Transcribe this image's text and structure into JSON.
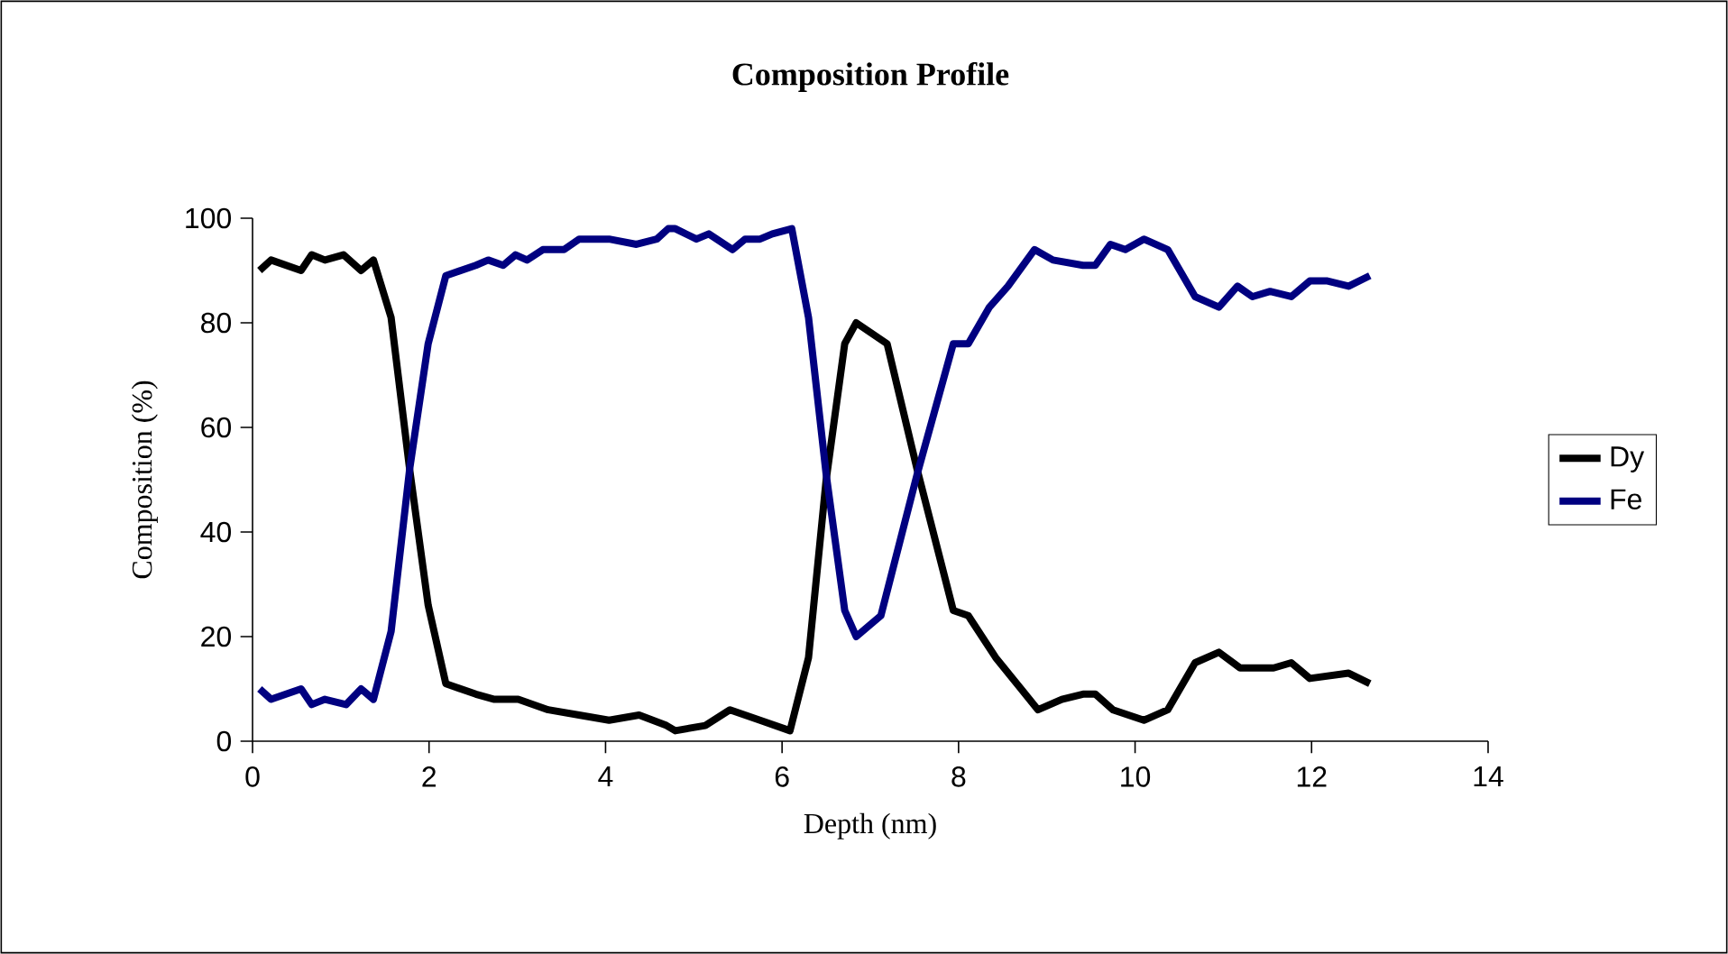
{
  "chart_data": {
    "type": "line",
    "title": "Composition Profile",
    "xlabel": "Depth (nm)",
    "ylabel": "Composition (%)",
    "xlim": [
      0,
      14
    ],
    "xticks": [
      0,
      2,
      4,
      6,
      8,
      10,
      12,
      14
    ],
    "ylim": [
      0,
      100
    ],
    "yticks": [
      0,
      20,
      40,
      60,
      80,
      100
    ],
    "grid": false,
    "legend": "right",
    "marker": "none",
    "line_style": "solid",
    "series": [
      {
        "name": "Dy",
        "color": "#000000",
        "x": [
          0.08,
          0.21,
          0.55,
          0.67,
          0.82,
          1.03,
          1.23,
          1.37,
          1.57,
          1.78,
          1.99,
          2.19,
          2.53,
          2.74,
          3.01,
          3.35,
          3.7,
          4.04,
          4.38,
          4.69,
          4.79,
          5.13,
          5.41,
          5.75,
          6.09,
          6.3,
          6.5,
          6.71,
          6.84,
          7.19,
          7.53,
          7.94,
          8.11,
          8.42,
          8.9,
          9.17,
          9.41,
          9.55,
          9.75,
          10.1,
          10.37,
          10.68,
          10.95,
          11.19,
          11.57,
          11.77,
          11.98,
          12.42,
          12.66
        ],
        "values": [
          90,
          92,
          90,
          93,
          92,
          93,
          90,
          92,
          81,
          52,
          26,
          11,
          9,
          8,
          8,
          6,
          5,
          4,
          5,
          3,
          2,
          3,
          6,
          4,
          2,
          16,
          50,
          76,
          80,
          76,
          52,
          25,
          24,
          16,
          6,
          8,
          9,
          9,
          6,
          4,
          6,
          15,
          17,
          14,
          14,
          15,
          12,
          13,
          11
        ]
      },
      {
        "name": "Fe",
        "color": "#000080",
        "x": [
          0.08,
          0.21,
          0.55,
          0.67,
          0.82,
          1.06,
          1.23,
          1.37,
          1.57,
          1.78,
          1.99,
          2.19,
          2.53,
          2.67,
          2.84,
          2.98,
          3.11,
          3.29,
          3.53,
          3.7,
          4.04,
          4.35,
          4.58,
          4.71,
          4.79,
          5.03,
          5.17,
          5.44,
          5.58,
          5.75,
          5.89,
          6.11,
          6.3,
          6.5,
          6.71,
          6.84,
          7.12,
          7.53,
          7.94,
          8.11,
          8.35,
          8.56,
          8.86,
          9.07,
          9.41,
          9.55,
          9.72,
          9.89,
          10.1,
          10.37,
          10.68,
          10.95,
          11.16,
          11.33,
          11.53,
          11.77,
          11.98,
          12.18,
          12.42,
          12.66
        ],
        "values": [
          10,
          8,
          10,
          7,
          8,
          7,
          10,
          8,
          21,
          52,
          76,
          89,
          91,
          92,
          91,
          93,
          92,
          94,
          94,
          96,
          96,
          95,
          96,
          98,
          98,
          96,
          97,
          94,
          96,
          96,
          97,
          98,
          81,
          51,
          25,
          20,
          24,
          51,
          76,
          76,
          83,
          87,
          94,
          92,
          91,
          91,
          95,
          94,
          96,
          94,
          85,
          83,
          87,
          85,
          86,
          85,
          88,
          88,
          87,
          89
        ]
      }
    ]
  }
}
